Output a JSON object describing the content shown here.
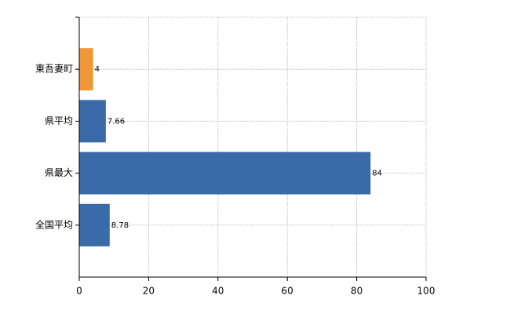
{
  "chart_data": {
    "type": "bar",
    "orientation": "horizontal",
    "categories": [
      "東吾妻町",
      "県平均",
      "県最大",
      "全国平均"
    ],
    "values": [
      4,
      7.66,
      84,
      8.78
    ],
    "colors": [
      "#f0973a",
      "#3a6aa8",
      "#3a6aa8",
      "#3a6aa8"
    ],
    "xlim": [
      0,
      100
    ],
    "xticks": [
      0,
      20,
      40,
      60,
      80,
      100
    ],
    "grid": true
  }
}
